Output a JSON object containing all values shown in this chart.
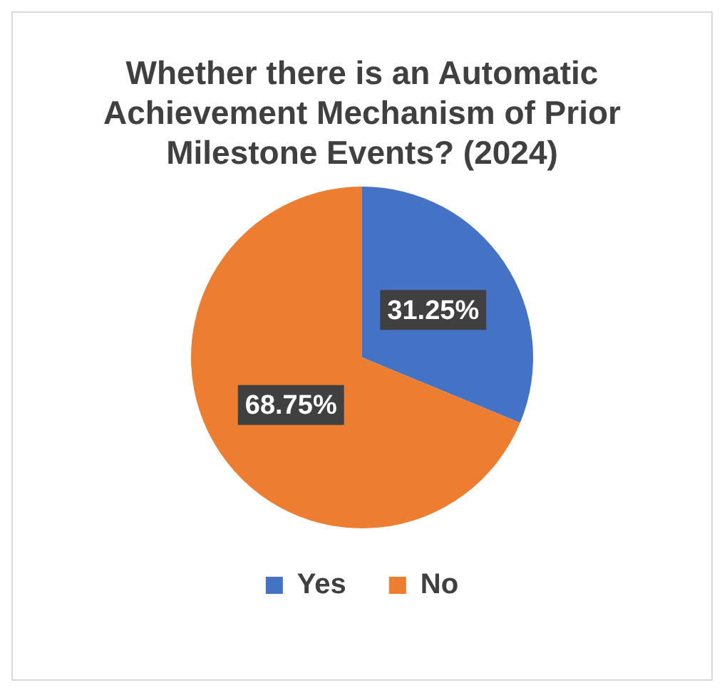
{
  "chart_data": {
    "type": "pie",
    "title": "Whether there is an Automatic Achievement Mechanism of Prior Milestone Events? (2024)",
    "categories": [
      "Yes",
      "No"
    ],
    "values": [
      31.25,
      68.75
    ],
    "colors": [
      "#4472c4",
      "#ed7d31"
    ],
    "value_labels": [
      "31.25%",
      "68.75%"
    ],
    "legend": "bottom"
  }
}
